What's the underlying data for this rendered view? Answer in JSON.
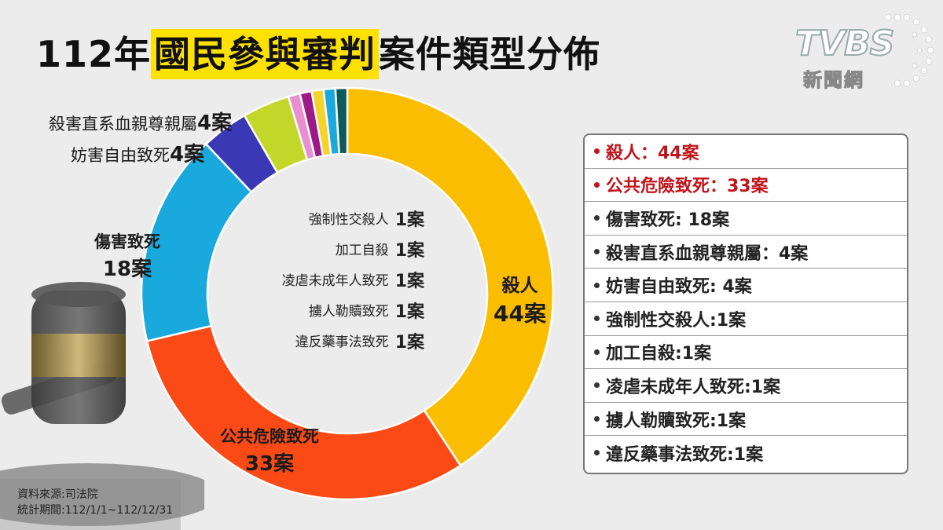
{
  "title": {
    "part1": "112年",
    "part2": "國民參與審判",
    "part3": "案件類型分佈"
  },
  "logo": {
    "brand": "TVBS",
    "sub": "新聞網"
  },
  "colors": {
    "title_highlight": "#ffe100",
    "legend_red": "#c0141b"
  },
  "chart_data": {
    "type": "pie",
    "style": "donut",
    "categories": [
      "殺人",
      "公共危險致死",
      "傷害致死",
      "殺害直系血親尊親屬",
      "妨害自由致死",
      "強制性交殺人",
      "加工自殺",
      "凌虐未成年人致死",
      "擄人勒贖致死",
      "違反藥事法致死"
    ],
    "values": [
      44,
      33,
      18,
      4,
      4,
      1,
      1,
      1,
      1,
      1
    ],
    "colors": [
      "#fbbd00",
      "#fb4a16",
      "#1aa9dd",
      "#3b38b6",
      "#c3d72a",
      "#e88fd0",
      "#9c1a86",
      "#f4d42a",
      "#1aa9dd",
      "#0d5a5a"
    ],
    "outer_labels": [
      {
        "name": "殺人",
        "count": "44案"
      },
      {
        "name": "公共危險致死",
        "count": "33案"
      },
      {
        "name": "傷害致死",
        "count": "18案"
      },
      {
        "name": "殺害直系血親尊親屬",
        "count": "4案"
      },
      {
        "name": "妨害自由致死",
        "count": "4案"
      }
    ],
    "inner_labels": [
      {
        "name": "強制性交殺人",
        "count": "1案"
      },
      {
        "name": "加工自殺",
        "count": "1案"
      },
      {
        "name": "凌虐未成年人致死",
        "count": "1案"
      },
      {
        "name": "擄人勒贖致死",
        "count": "1案"
      },
      {
        "name": "違反藥事法致死",
        "count": "1案"
      }
    ]
  },
  "legend": [
    {
      "text": "殺人：44案",
      "highlight": true
    },
    {
      "text": "公共危險致死：33案",
      "highlight": true
    },
    {
      "text": "傷害致死: 18案",
      "highlight": false
    },
    {
      "text": "殺害直系血親尊親屬：4案",
      "highlight": false
    },
    {
      "text": "妨害自由致死: 4案",
      "highlight": false
    },
    {
      "text": "強制性交殺人:1案",
      "highlight": false
    },
    {
      "text": "加工自殺:1案",
      "highlight": false
    },
    {
      "text": "凌虐未成年人致死:1案",
      "highlight": false
    },
    {
      "text": "擄人勒贖致死:1案",
      "highlight": false
    },
    {
      "text": "違反藥事法致死:1案",
      "highlight": false
    }
  ],
  "source": {
    "line1": "資料來源:司法院",
    "line2": "統計期間:112/1/1~112/12/31"
  }
}
